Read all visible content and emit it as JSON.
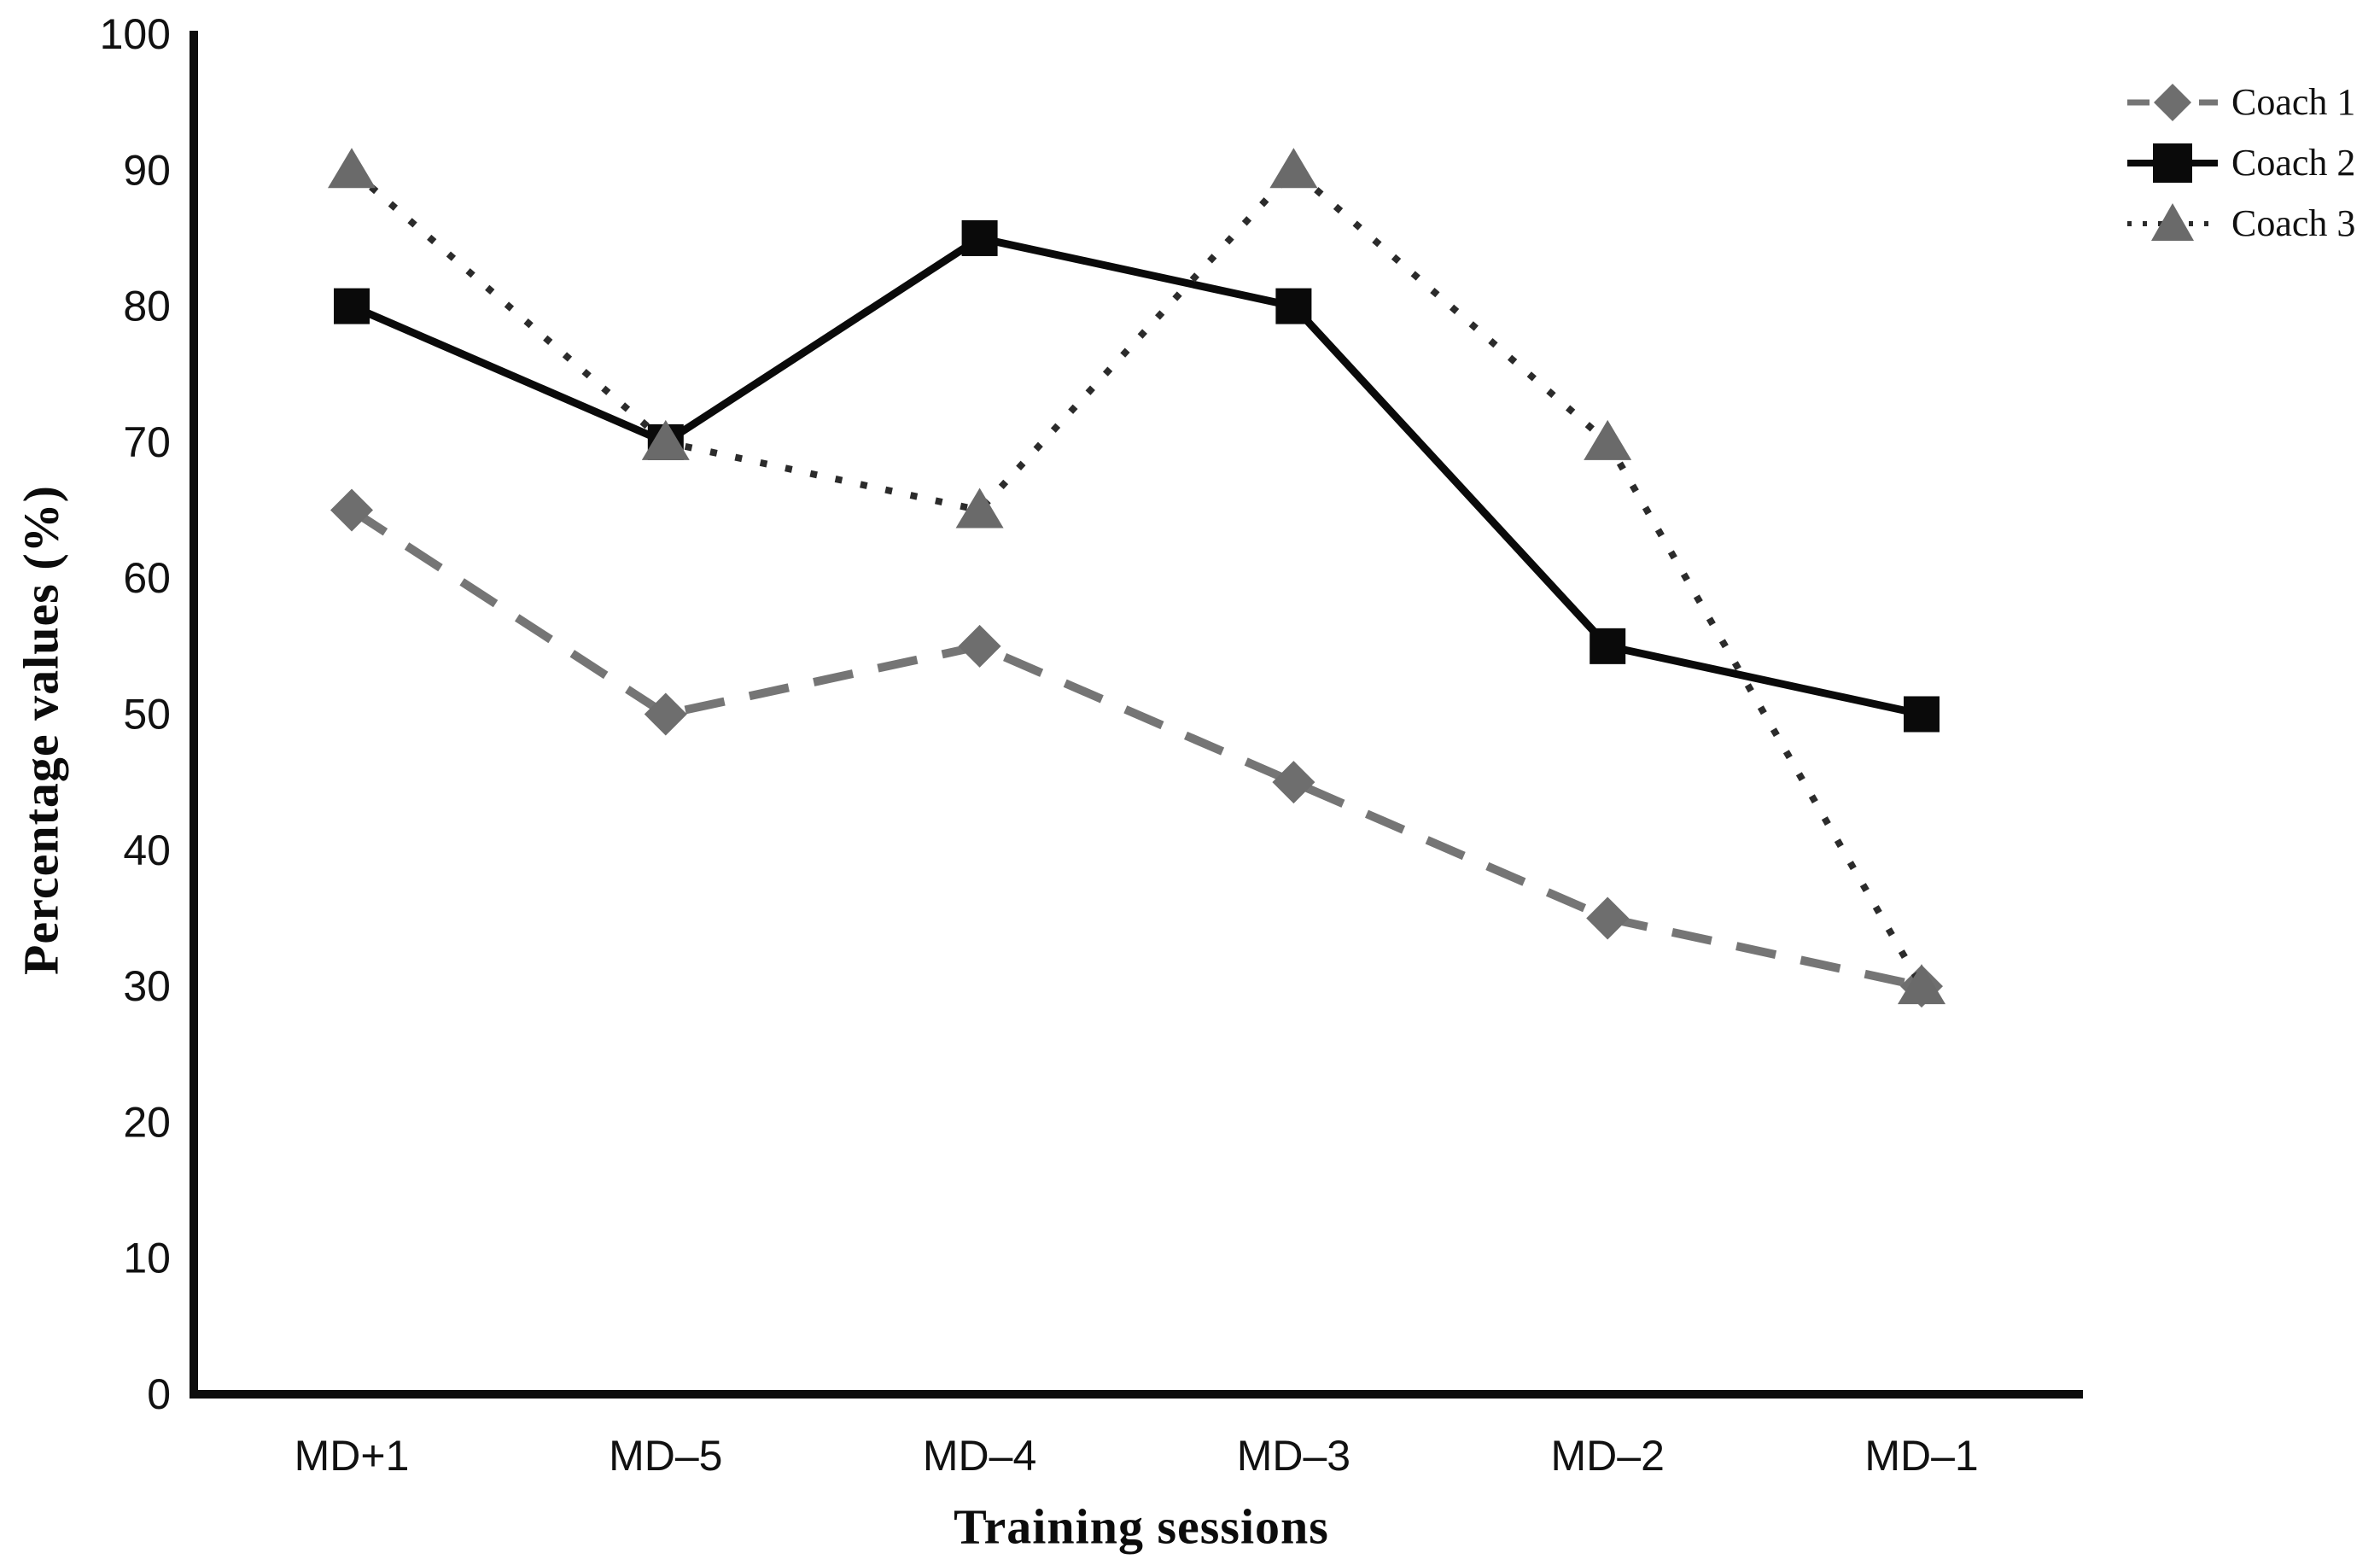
{
  "chart_data": {
    "type": "line",
    "title": "",
    "xlabel": "Training sessions",
    "ylabel": "Percentage values (%)",
    "categories": [
      "MD+1",
      "MD–5",
      "MD–4",
      "MD–3",
      "MD–2",
      "MD–1"
    ],
    "y_ticks": [
      0,
      10,
      20,
      30,
      40,
      50,
      60,
      70,
      80,
      90,
      100
    ],
    "ylim": [
      0,
      100
    ],
    "grid": false,
    "legend_position": "top-right",
    "background_color": "#ffffff",
    "axis_color": "#0d0d0d",
    "tick_label_color": "#111111",
    "series": [
      {
        "name": "Coach 1",
        "values": [
          65,
          50,
          55,
          45,
          35,
          30
        ],
        "line_color": "#757575",
        "marker_color": "#6e6e6e",
        "line_style": "dashed",
        "marker": "diamond"
      },
      {
        "name": "Coach 2",
        "values": [
          80,
          70,
          85,
          80,
          55,
          50
        ],
        "line_color": "#0a0a0a",
        "marker_color": "#0a0a0a",
        "line_style": "solid",
        "marker": "square"
      },
      {
        "name": "Coach 3",
        "values": [
          90,
          70,
          65,
          90,
          70,
          30
        ],
        "line_color": "#2b2b2b",
        "marker_color": "#6a6a6a",
        "line_style": "dotted",
        "marker": "triangle"
      }
    ]
  }
}
